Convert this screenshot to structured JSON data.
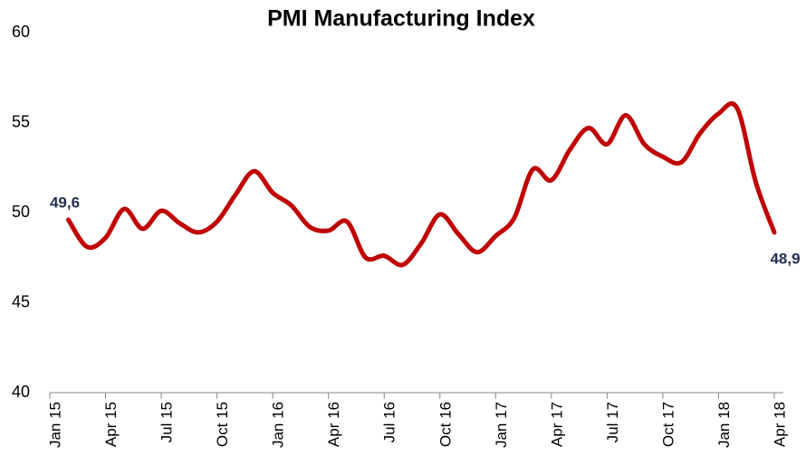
{
  "chart_data": {
    "type": "line",
    "title": "PMI Manufacturing Index",
    "categories": [
      "Jan 15",
      null,
      null,
      "Apr 15",
      null,
      null,
      "Jul 15",
      null,
      null,
      "Oct 15",
      null,
      null,
      "Jan 16",
      null,
      null,
      "Apr 16",
      null,
      null,
      "Jul 16",
      null,
      null,
      "Oct 16",
      null,
      null,
      "Jan 17",
      null,
      null,
      "Apr 17",
      null,
      null,
      "Jul 17",
      null,
      null,
      "Oct 17",
      null,
      null,
      "Jan 18",
      null,
      null,
      "Apr 18"
    ],
    "series": [
      {
        "name": "PMI",
        "color": "#c00000",
        "values": [
          null,
          49.6,
          48.1,
          48.6,
          50.2,
          49.1,
          50.1,
          49.4,
          48.9,
          49.5,
          51.0,
          52.3,
          51.1,
          50.4,
          49.2,
          49.0,
          49.5,
          47.5,
          47.6,
          47.1,
          48.3,
          49.9,
          48.8,
          47.8,
          48.7,
          49.7,
          52.4,
          51.8,
          53.5,
          54.7,
          53.8,
          55.4,
          53.8,
          53.1,
          52.8,
          54.4,
          55.5,
          55.8,
          51.7,
          48.9
        ],
        "value_labels": [
          null,
          "49,6",
          null,
          null,
          null,
          null,
          null,
          null,
          null,
          null,
          null,
          null,
          null,
          null,
          null,
          null,
          null,
          null,
          null,
          null,
          null,
          null,
          null,
          null,
          null,
          null,
          null,
          null,
          null,
          null,
          null,
          null,
          null,
          null,
          null,
          null,
          null,
          null,
          null,
          "48,9"
        ]
      }
    ],
    "ylim": [
      40,
      60
    ],
    "yticks": [
      40,
      45,
      50,
      55,
      60
    ],
    "grid": false
  }
}
